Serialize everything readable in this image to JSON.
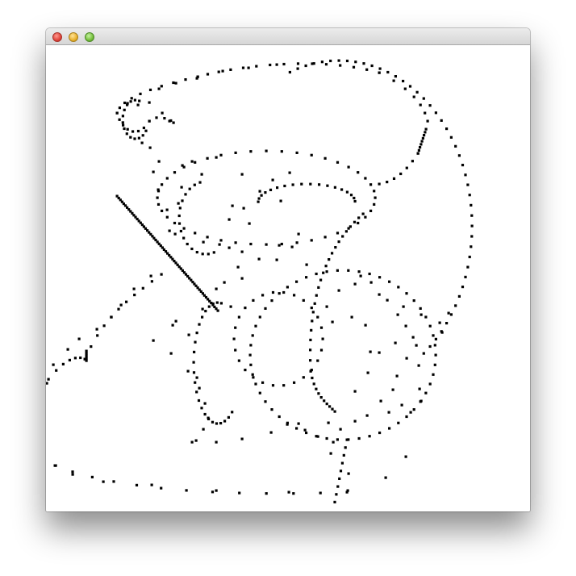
{
  "window": {
    "title": "",
    "buttons": [
      {
        "name": "close",
        "color": "#e0443a"
      },
      {
        "name": "minimize",
        "color": "#e9b12c"
      },
      {
        "name": "maximize",
        "color": "#74be3a"
      }
    ]
  },
  "canvas": {
    "background": "#ffffff",
    "dot_color": "#000000"
  }
}
